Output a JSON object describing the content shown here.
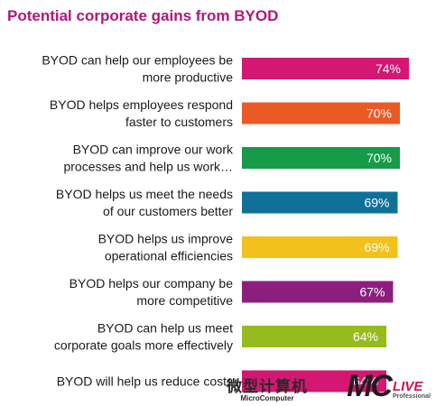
{
  "chart_data": {
    "type": "bar",
    "orientation": "horizontal",
    "title": "Potential corporate gains from BYOD",
    "categories": [
      [
        "BYOD can help our employees be",
        "more productive"
      ],
      [
        "BYOD helps employees respond",
        "faster to customers"
      ],
      [
        "BYOD can improve our work",
        "processes and help us work…"
      ],
      [
        "BYOD helps us meet the needs",
        "of our customers better"
      ],
      [
        "BYOD helps us improve",
        "operational efficiencies"
      ],
      [
        "BYOD helps our company be",
        "more competitive"
      ],
      [
        "BYOD can help us meet",
        "corporate goals more effectively"
      ],
      [
        "BYOD will help us reduce costs"
      ]
    ],
    "values": [
      74,
      70,
      70,
      69,
      69,
      67,
      64,
      64
    ],
    "value_labels": [
      "74%",
      "70%",
      "70%",
      "69%",
      "69%",
      "67%",
      "64%",
      "64%"
    ],
    "colors": [
      "#d31772",
      "#ea5a25",
      "#169b48",
      "#0f7198",
      "#f2c11b",
      "#8c1f7e",
      "#96bb1d",
      "#d31772"
    ],
    "value_label_color": "#ffffff",
    "title_color": "#b0177b",
    "xlim": [
      0,
      100
    ],
    "grid": false,
    "legend": "none"
  },
  "watermark": {
    "chinese": "微型计算机",
    "english": "MicroComputer",
    "logo": "MC",
    "live": "LIVE",
    "professional": "Professional"
  }
}
